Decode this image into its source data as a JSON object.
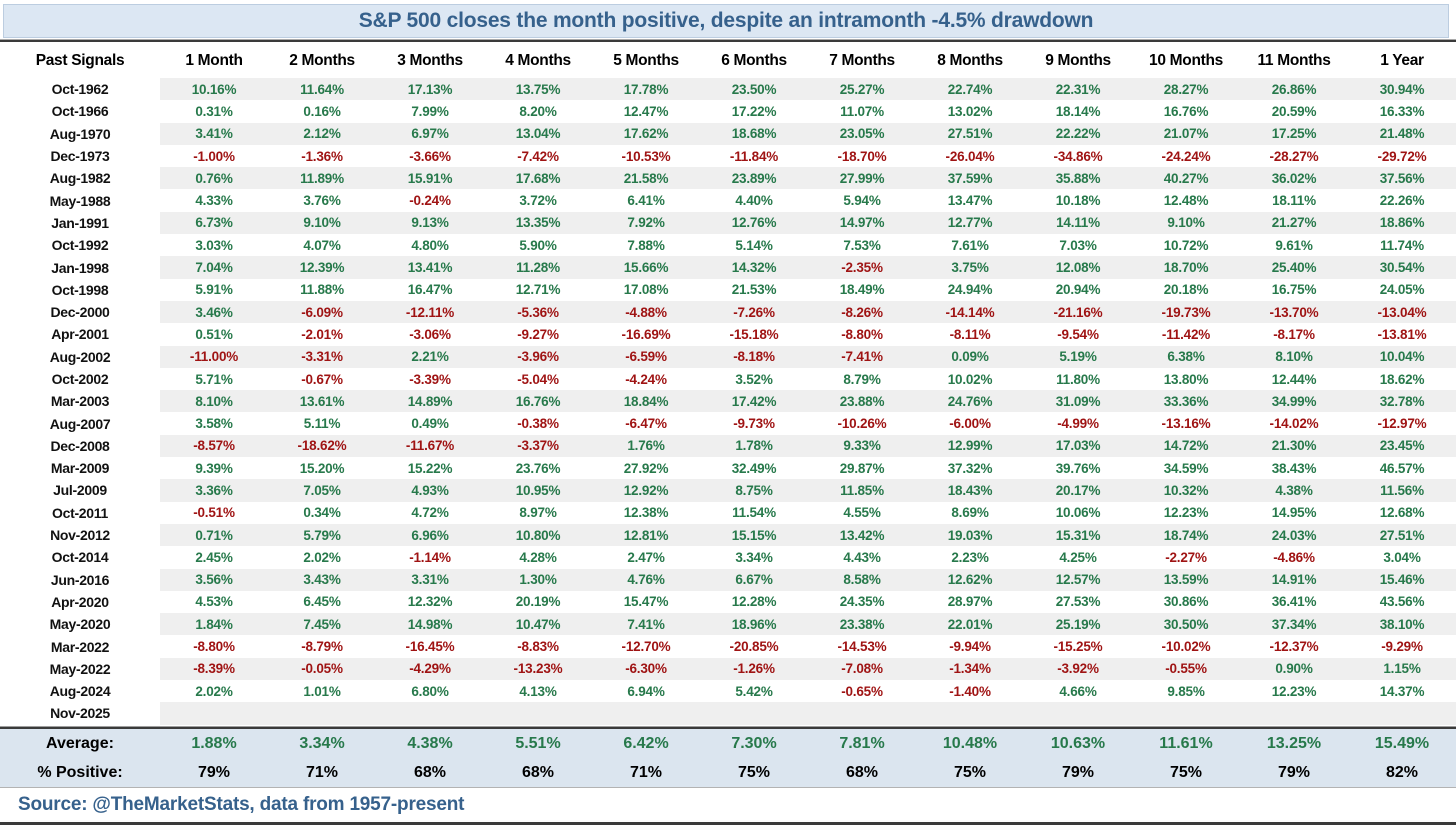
{
  "colors": {
    "positive": "#27794b",
    "negative": "#9f1313",
    "title_text": "#36618c",
    "title_bg": "#dce7f3",
    "summary_bg": "#dbe5ef",
    "stripe": "#efefef",
    "rule": "#3a3a3a"
  },
  "chart_data": {
    "type": "table",
    "title": "S&P 500 closes the month positive, despite an intramonth -4.5% drawdown",
    "row_header": "Past Signals",
    "columns": [
      "1 Month",
      "2 Months",
      "3 Months",
      "4 Months",
      "5 Months",
      "6 Months",
      "7 Months",
      "8 Months",
      "9 Months",
      "10 Months",
      "11 Months",
      "1 Year"
    ],
    "rows": [
      {
        "label": "Oct-1962",
        "values": [
          "10.16%",
          "11.64%",
          "17.13%",
          "13.75%",
          "17.78%",
          "23.50%",
          "25.27%",
          "22.74%",
          "22.31%",
          "28.27%",
          "26.86%",
          "30.94%"
        ]
      },
      {
        "label": "Oct-1966",
        "values": [
          "0.31%",
          "0.16%",
          "7.99%",
          "8.20%",
          "12.47%",
          "17.22%",
          "11.07%",
          "13.02%",
          "18.14%",
          "16.76%",
          "20.59%",
          "16.33%"
        ]
      },
      {
        "label": "Aug-1970",
        "values": [
          "3.41%",
          "2.12%",
          "6.97%",
          "13.04%",
          "17.62%",
          "18.68%",
          "23.05%",
          "27.51%",
          "22.22%",
          "21.07%",
          "17.25%",
          "21.48%"
        ]
      },
      {
        "label": "Dec-1973",
        "values": [
          "-1.00%",
          "-1.36%",
          "-3.66%",
          "-7.42%",
          "-10.53%",
          "-11.84%",
          "-18.70%",
          "-26.04%",
          "-34.86%",
          "-24.24%",
          "-28.27%",
          "-29.72%"
        ]
      },
      {
        "label": "Aug-1982",
        "values": [
          "0.76%",
          "11.89%",
          "15.91%",
          "17.68%",
          "21.58%",
          "23.89%",
          "27.99%",
          "37.59%",
          "35.88%",
          "40.27%",
          "36.02%",
          "37.56%"
        ]
      },
      {
        "label": "May-1988",
        "values": [
          "4.33%",
          "3.76%",
          "-0.24%",
          "3.72%",
          "6.41%",
          "4.40%",
          "5.94%",
          "13.47%",
          "10.18%",
          "12.48%",
          "18.11%",
          "22.26%"
        ]
      },
      {
        "label": "Jan-1991",
        "values": [
          "6.73%",
          "9.10%",
          "9.13%",
          "13.35%",
          "7.92%",
          "12.76%",
          "14.97%",
          "12.77%",
          "14.11%",
          "9.10%",
          "21.27%",
          "18.86%"
        ]
      },
      {
        "label": "Oct-1992",
        "values": [
          "3.03%",
          "4.07%",
          "4.80%",
          "5.90%",
          "7.88%",
          "5.14%",
          "7.53%",
          "7.61%",
          "7.03%",
          "10.72%",
          "9.61%",
          "11.74%"
        ]
      },
      {
        "label": "Jan-1998",
        "values": [
          "7.04%",
          "12.39%",
          "13.41%",
          "11.28%",
          "15.66%",
          "14.32%",
          "-2.35%",
          "3.75%",
          "12.08%",
          "18.70%",
          "25.40%",
          "30.54%"
        ]
      },
      {
        "label": "Oct-1998",
        "values": [
          "5.91%",
          "11.88%",
          "16.47%",
          "12.71%",
          "17.08%",
          "21.53%",
          "18.49%",
          "24.94%",
          "20.94%",
          "20.18%",
          "16.75%",
          "24.05%"
        ]
      },
      {
        "label": "Dec-2000",
        "values": [
          "3.46%",
          "-6.09%",
          "-12.11%",
          "-5.36%",
          "-4.88%",
          "-7.26%",
          "-8.26%",
          "-14.14%",
          "-21.16%",
          "-19.73%",
          "-13.70%",
          "-13.04%"
        ]
      },
      {
        "label": "Apr-2001",
        "values": [
          "0.51%",
          "-2.01%",
          "-3.06%",
          "-9.27%",
          "-16.69%",
          "-15.18%",
          "-8.80%",
          "-8.11%",
          "-9.54%",
          "-11.42%",
          "-8.17%",
          "-13.81%"
        ]
      },
      {
        "label": "Aug-2002",
        "values": [
          "-11.00%",
          "-3.31%",
          "2.21%",
          "-3.96%",
          "-6.59%",
          "-8.18%",
          "-7.41%",
          "0.09%",
          "5.19%",
          "6.38%",
          "8.10%",
          "10.04%"
        ]
      },
      {
        "label": "Oct-2002",
        "values": [
          "5.71%",
          "-0.67%",
          "-3.39%",
          "-5.04%",
          "-4.24%",
          "3.52%",
          "8.79%",
          "10.02%",
          "11.80%",
          "13.80%",
          "12.44%",
          "18.62%"
        ]
      },
      {
        "label": "Mar-2003",
        "values": [
          "8.10%",
          "13.61%",
          "14.89%",
          "16.76%",
          "18.84%",
          "17.42%",
          "23.88%",
          "24.76%",
          "31.09%",
          "33.36%",
          "34.99%",
          "32.78%"
        ]
      },
      {
        "label": "Aug-2007",
        "values": [
          "3.58%",
          "5.11%",
          "0.49%",
          "-0.38%",
          "-6.47%",
          "-9.73%",
          "-10.26%",
          "-6.00%",
          "-4.99%",
          "-13.16%",
          "-14.02%",
          "-12.97%"
        ]
      },
      {
        "label": "Dec-2008",
        "values": [
          "-8.57%",
          "-18.62%",
          "-11.67%",
          "-3.37%",
          "1.76%",
          "1.78%",
          "9.33%",
          "12.99%",
          "17.03%",
          "14.72%",
          "21.30%",
          "23.45%"
        ]
      },
      {
        "label": "Mar-2009",
        "values": [
          "9.39%",
          "15.20%",
          "15.22%",
          "23.76%",
          "27.92%",
          "32.49%",
          "29.87%",
          "37.32%",
          "39.76%",
          "34.59%",
          "38.43%",
          "46.57%"
        ]
      },
      {
        "label": "Jul-2009",
        "values": [
          "3.36%",
          "7.05%",
          "4.93%",
          "10.95%",
          "12.92%",
          "8.75%",
          "11.85%",
          "18.43%",
          "20.17%",
          "10.32%",
          "4.38%",
          "11.56%"
        ]
      },
      {
        "label": "Oct-2011",
        "values": [
          "-0.51%",
          "0.34%",
          "4.72%",
          "8.97%",
          "12.38%",
          "11.54%",
          "4.55%",
          "8.69%",
          "10.06%",
          "12.23%",
          "14.95%",
          "12.68%"
        ]
      },
      {
        "label": "Nov-2012",
        "values": [
          "0.71%",
          "5.79%",
          "6.96%",
          "10.80%",
          "12.81%",
          "15.15%",
          "13.42%",
          "19.03%",
          "15.31%",
          "18.74%",
          "24.03%",
          "27.51%"
        ]
      },
      {
        "label": "Oct-2014",
        "values": [
          "2.45%",
          "2.02%",
          "-1.14%",
          "4.28%",
          "2.47%",
          "3.34%",
          "4.43%",
          "2.23%",
          "4.25%",
          "-2.27%",
          "-4.86%",
          "3.04%"
        ]
      },
      {
        "label": "Jun-2016",
        "values": [
          "3.56%",
          "3.43%",
          "3.31%",
          "1.30%",
          "4.76%",
          "6.67%",
          "8.58%",
          "12.62%",
          "12.57%",
          "13.59%",
          "14.91%",
          "15.46%"
        ]
      },
      {
        "label": "Apr-2020",
        "values": [
          "4.53%",
          "6.45%",
          "12.32%",
          "20.19%",
          "15.47%",
          "12.28%",
          "24.35%",
          "28.97%",
          "27.53%",
          "30.86%",
          "36.41%",
          "43.56%"
        ]
      },
      {
        "label": "May-2020",
        "values": [
          "1.84%",
          "7.45%",
          "14.98%",
          "10.47%",
          "7.41%",
          "18.96%",
          "23.38%",
          "22.01%",
          "25.19%",
          "30.50%",
          "37.34%",
          "38.10%"
        ]
      },
      {
        "label": "Mar-2022",
        "values": [
          "-8.80%",
          "-8.79%",
          "-16.45%",
          "-8.83%",
          "-12.70%",
          "-20.85%",
          "-14.53%",
          "-9.94%",
          "-15.25%",
          "-10.02%",
          "-12.37%",
          "-9.29%"
        ]
      },
      {
        "label": "May-2022",
        "values": [
          "-8.39%",
          "-0.05%",
          "-4.29%",
          "-13.23%",
          "-6.30%",
          "-1.26%",
          "-7.08%",
          "-1.34%",
          "-3.92%",
          "-0.55%",
          "0.90%",
          "1.15%"
        ]
      },
      {
        "label": "Aug-2024",
        "values": [
          "2.02%",
          "1.01%",
          "6.80%",
          "4.13%",
          "6.94%",
          "5.42%",
          "-0.65%",
          "-1.40%",
          "4.66%",
          "9.85%",
          "12.23%",
          "14.37%"
        ]
      },
      {
        "label": "Nov-2025",
        "values": [
          "",
          "",
          "",
          "",
          "",
          "",
          "",
          "",
          "",
          "",
          "",
          ""
        ]
      }
    ],
    "summary": {
      "average_label": "Average:",
      "average_values": [
        "1.88%",
        "3.34%",
        "4.38%",
        "5.51%",
        "6.42%",
        "7.30%",
        "7.81%",
        "10.48%",
        "10.63%",
        "11.61%",
        "13.25%",
        "15.49%"
      ],
      "percent_positive_label": "% Positive:",
      "percent_positive_values": [
        "79%",
        "71%",
        "68%",
        "68%",
        "71%",
        "75%",
        "68%",
        "75%",
        "79%",
        "75%",
        "79%",
        "82%"
      ]
    },
    "source_line": "Source: @TheMarketStats, data from 1957-present"
  }
}
